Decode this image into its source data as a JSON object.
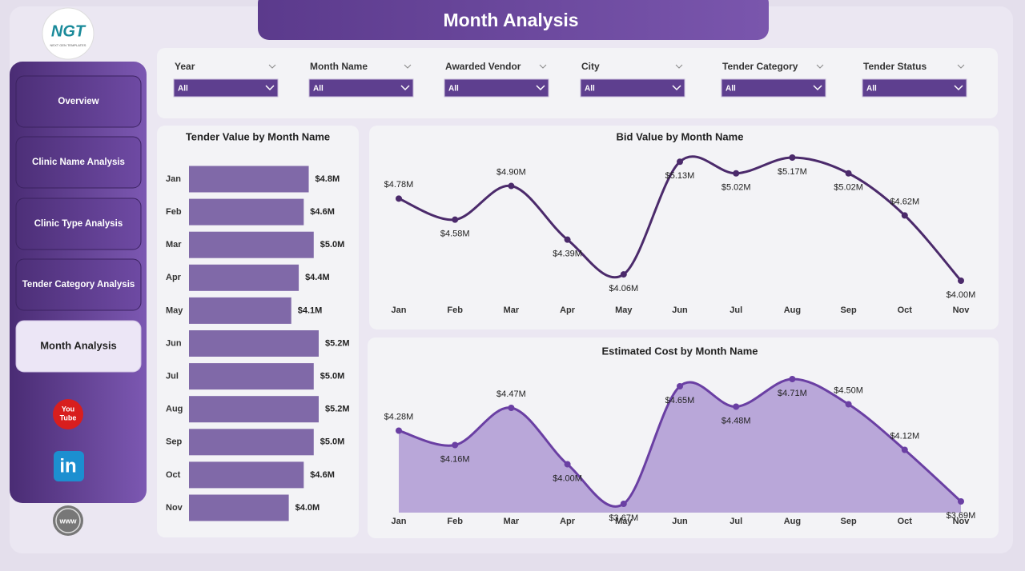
{
  "header": {
    "title": "Month Analysis",
    "logo": "NGT",
    "logo_sub": "NEXT GEN TEMPLATES"
  },
  "nav": {
    "items": [
      "Overview",
      "Clinic Name Analysis",
      "Clinic Type Analysis",
      "Tender Category Analysis",
      "Month Analysis"
    ],
    "active": 4
  },
  "social": {
    "youtube": [
      "You",
      "Tube"
    ],
    "linkedin": "in",
    "web": "www"
  },
  "filters": [
    {
      "label": "Year",
      "value": "All"
    },
    {
      "label": "Month Name",
      "value": "All"
    },
    {
      "label": "Awarded Vendor",
      "value": "All"
    },
    {
      "label": "City",
      "value": "All"
    },
    {
      "label": "Tender Category",
      "value": "All"
    },
    {
      "label": "Tender Status",
      "value": "All"
    }
  ],
  "chart_data": [
    {
      "type": "bar",
      "orientation": "horizontal",
      "title": "Tender Value by Month Name",
      "categories": [
        "Jan",
        "Feb",
        "Mar",
        "Apr",
        "May",
        "Jun",
        "Jul",
        "Aug",
        "Sep",
        "Oct",
        "Nov"
      ],
      "values": [
        4.8,
        4.6,
        5.0,
        4.4,
        4.1,
        5.2,
        5.0,
        5.2,
        5.0,
        4.6,
        4.0
      ],
      "value_labels": [
        "$4.8M",
        "$4.6M",
        "$5.0M",
        "$4.4M",
        "$4.1M",
        "$5.2M",
        "$5.0M",
        "$5.2M",
        "$5.0M",
        "$4.6M",
        "$4.0M"
      ],
      "color": "#8069a8"
    },
    {
      "type": "line",
      "title": "Bid Value by Month Name",
      "categories": [
        "Jan",
        "Feb",
        "Mar",
        "Apr",
        "May",
        "Jun",
        "Jul",
        "Aug",
        "Sep",
        "Oct",
        "Nov"
      ],
      "values": [
        4.78,
        4.58,
        4.9,
        4.39,
        4.06,
        5.13,
        5.02,
        5.17,
        5.02,
        4.62,
        4.0
      ],
      "value_labels": [
        "$4.78M",
        "$4.58M",
        "$4.90M",
        "$4.39M",
        "$4.06M",
        "$5.13M",
        "$5.02M",
        "$5.17M",
        "$5.02M",
        "$4.62M",
        "$4.00M"
      ],
      "color": "#4b2a6b"
    },
    {
      "type": "area",
      "title": "Estimated Cost by Month Name",
      "categories": [
        "Jan",
        "Feb",
        "Mar",
        "Apr",
        "May",
        "Jun",
        "Jul",
        "Aug",
        "Sep",
        "Oct",
        "Nov"
      ],
      "values": [
        4.28,
        4.16,
        4.47,
        4.0,
        3.67,
        4.65,
        4.48,
        4.71,
        4.5,
        4.12,
        3.69
      ],
      "value_labels": [
        "$4.28M",
        "$4.16M",
        "$4.47M",
        "$4.00M",
        "$3.67M",
        "$4.65M",
        "$4.48M",
        "$4.71M",
        "$4.50M",
        "$4.12M",
        "$3.69M"
      ],
      "color": "#6a3fa3",
      "fill": "#b9a7d9"
    }
  ]
}
